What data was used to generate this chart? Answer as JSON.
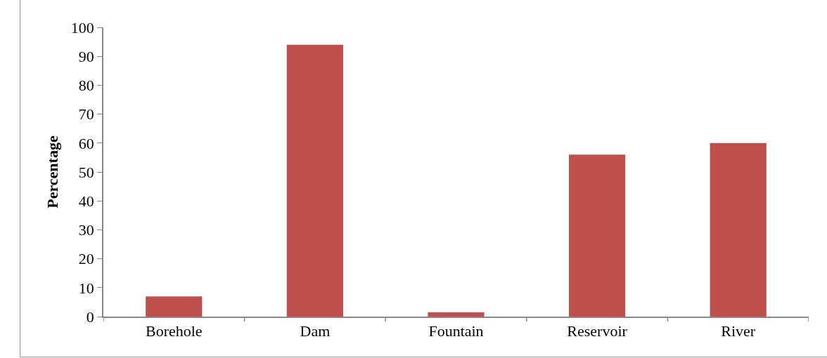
{
  "chart_data": {
    "type": "bar",
    "ylabel": "Percentage",
    "categories": [
      "Borehole",
      "Dam",
      "Fountain",
      "Reservoir",
      "River"
    ],
    "values": [
      7,
      94,
      1.5,
      56,
      60
    ],
    "color": "#c0504d",
    "ylim": [
      0,
      100
    ],
    "yticks": [
      0,
      10,
      20,
      30,
      40,
      50,
      60,
      70,
      80,
      90,
      100
    ],
    "grid": false
  }
}
